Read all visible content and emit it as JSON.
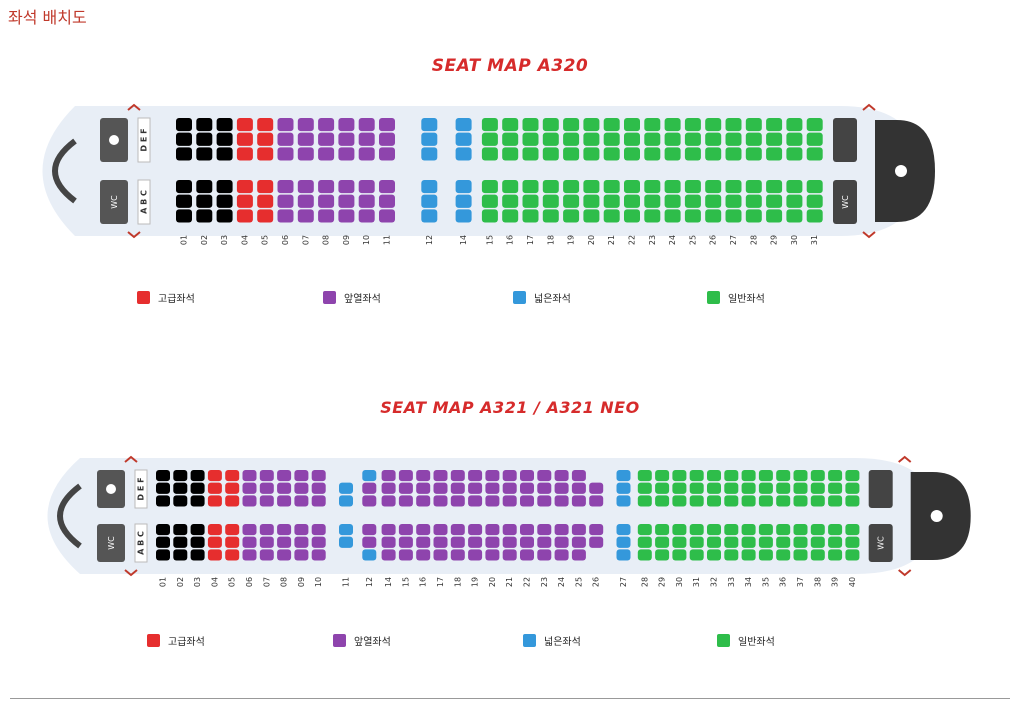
{
  "page_title": "좌석 배치도",
  "colors": {
    "first": "#000000",
    "premium": "#e62e2e",
    "front": "#8e44ad",
    "wide": "#3498db",
    "economy": "#2ebd4a",
    "galley": "#333333",
    "plane": "#e8eef6"
  },
  "legend": [
    {
      "label": "고급좌석",
      "color": "premium"
    },
    {
      "label": "앞열좌석",
      "color": "front"
    },
    {
      "label": "넓은좌석",
      "color": "wide"
    },
    {
      "label": "일반좌석",
      "color": "economy"
    }
  ],
  "maps": [
    {
      "title": "SEAT MAP  A320",
      "row_letters_top": "D E F",
      "row_letters_bottom": "A B C",
      "wc_label": "WC",
      "rows": [
        {
          "row": "01",
          "type": "first"
        },
        {
          "row": "02",
          "type": "first"
        },
        {
          "row": "03",
          "type": "first"
        },
        {
          "row": "04",
          "type": "premium"
        },
        {
          "row": "05",
          "type": "premium"
        },
        {
          "row": "06",
          "type": "front"
        },
        {
          "row": "07",
          "type": "front"
        },
        {
          "row": "08",
          "type": "front"
        },
        {
          "row": "09",
          "type": "front"
        },
        {
          "row": "10",
          "type": "front"
        },
        {
          "row": "11",
          "type": "front"
        },
        {
          "row": "12",
          "type": "wide"
        },
        {
          "row": "14",
          "type": "wide"
        },
        {
          "row": "15",
          "type": "economy"
        },
        {
          "row": "16",
          "type": "economy"
        },
        {
          "row": "17",
          "type": "economy"
        },
        {
          "row": "18",
          "type": "economy"
        },
        {
          "row": "19",
          "type": "economy"
        },
        {
          "row": "20",
          "type": "economy"
        },
        {
          "row": "21",
          "type": "economy"
        },
        {
          "row": "22",
          "type": "economy"
        },
        {
          "row": "23",
          "type": "economy"
        },
        {
          "row": "24",
          "type": "economy"
        },
        {
          "row": "25",
          "type": "economy"
        },
        {
          "row": "26",
          "type": "economy"
        },
        {
          "row": "27",
          "type": "economy"
        },
        {
          "row": "28",
          "type": "economy"
        },
        {
          "row": "29",
          "type": "economy"
        },
        {
          "row": "30",
          "type": "economy"
        },
        {
          "row": "31",
          "type": "economy"
        }
      ]
    },
    {
      "title": "SEAT MAP  A321 / A321 NEO",
      "row_letters_top": "D E F",
      "row_letters_bottom": "A B C",
      "wc_label": "WC",
      "rows": [
        {
          "row": "01",
          "type": "first"
        },
        {
          "row": "02",
          "type": "first"
        },
        {
          "row": "03",
          "type": "first"
        },
        {
          "row": "04",
          "type": "premium"
        },
        {
          "row": "05",
          "type": "premium"
        },
        {
          "row": "06",
          "type": "front"
        },
        {
          "row": "07",
          "type": "front"
        },
        {
          "row": "08",
          "type": "front"
        },
        {
          "row": "09",
          "type": "front"
        },
        {
          "row": "10",
          "type": "front"
        },
        {
          "row": "11",
          "type": "wide"
        },
        {
          "row": "12",
          "type": "mixed"
        },
        {
          "row": "14",
          "type": "front"
        },
        {
          "row": "15",
          "type": "front"
        },
        {
          "row": "16",
          "type": "front"
        },
        {
          "row": "17",
          "type": "front"
        },
        {
          "row": "18",
          "type": "front"
        },
        {
          "row": "19",
          "type": "front"
        },
        {
          "row": "20",
          "type": "front"
        },
        {
          "row": "21",
          "type": "front"
        },
        {
          "row": "22",
          "type": "front"
        },
        {
          "row": "23",
          "type": "front"
        },
        {
          "row": "24",
          "type": "front"
        },
        {
          "row": "25",
          "type": "front"
        },
        {
          "row": "26",
          "type": "front-single"
        },
        {
          "row": "27",
          "type": "wide"
        },
        {
          "row": "28",
          "type": "economy"
        },
        {
          "row": "29",
          "type": "economy"
        },
        {
          "row": "30",
          "type": "economy"
        },
        {
          "row": "31",
          "type": "economy"
        },
        {
          "row": "32",
          "type": "economy"
        },
        {
          "row": "33",
          "type": "economy"
        },
        {
          "row": "34",
          "type": "economy"
        },
        {
          "row": "35",
          "type": "economy"
        },
        {
          "row": "36",
          "type": "economy"
        },
        {
          "row": "37",
          "type": "economy"
        },
        {
          "row": "38",
          "type": "economy"
        },
        {
          "row": "39",
          "type": "economy"
        },
        {
          "row": "40",
          "type": "economy"
        }
      ]
    }
  ]
}
